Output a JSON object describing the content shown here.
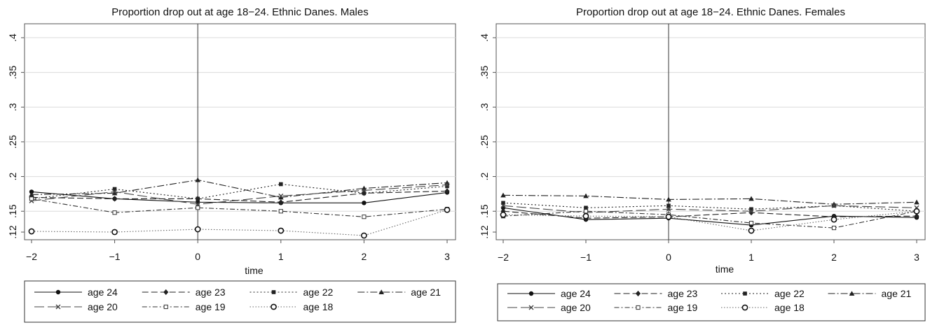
{
  "chart_data": [
    {
      "type": "line",
      "title": "Proportion drop out at age 18−24. Ethnic Danes. Males",
      "xlabel": "time",
      "ylabel": "",
      "x": [
        -2,
        -1,
        0,
        1,
        2,
        3
      ],
      "x_ticks": [
        "−2",
        "−1",
        "0",
        "1",
        "2",
        "3"
      ],
      "xlim": [
        -2,
        3
      ],
      "ylim": [
        0.115,
        0.41
      ],
      "y_ticks": [
        ".12",
        ".15",
        ".2",
        ".25",
        ".3",
        ".35",
        ".4"
      ],
      "grid": "horizontal",
      "vertical_reference_line": 0,
      "legend_position": "bottom",
      "series": [
        {
          "name": "age 24",
          "values": [
            0.178,
            0.168,
            0.163,
            0.162,
            0.162,
            0.177
          ]
        },
        {
          "name": "age 23",
          "values": [
            0.17,
            0.168,
            0.168,
            0.163,
            0.176,
            0.179
          ]
        },
        {
          "name": "age 22",
          "values": [
            0.168,
            0.182,
            0.168,
            0.189,
            0.176,
            0.186
          ]
        },
        {
          "name": "age 21",
          "values": [
            0.174,
            0.176,
            0.195,
            0.17,
            0.183,
            0.191
          ]
        },
        {
          "name": "age 20",
          "values": [
            0.165,
            0.178,
            0.16,
            0.172,
            0.18,
            0.188
          ]
        },
        {
          "name": "age 19",
          "values": [
            0.168,
            0.148,
            0.155,
            0.15,
            0.142,
            0.153
          ]
        },
        {
          "name": "age 18",
          "values": [
            0.121,
            0.12,
            0.124,
            0.122,
            0.115,
            0.152
          ]
        }
      ]
    },
    {
      "type": "line",
      "title": "Proportion drop out at age 18−24. Ethnic Danes. Females",
      "xlabel": "time",
      "ylabel": "",
      "x": [
        -2,
        -1,
        0,
        1,
        2,
        3
      ],
      "x_ticks": [
        "−2",
        "−1",
        "0",
        "1",
        "2",
        "3"
      ],
      "xlim": [
        -2,
        3
      ],
      "ylim": [
        0.115,
        0.41
      ],
      "y_ticks": [
        ".12",
        ".15",
        ".2",
        ".25",
        ".3",
        ".35",
        ".4"
      ],
      "grid": "horizontal",
      "vertical_reference_line": 0,
      "legend_position": "bottom",
      "series": [
        {
          "name": "age 24",
          "values": [
            0.155,
            0.138,
            0.14,
            0.13,
            0.143,
            0.141
          ]
        },
        {
          "name": "age 23",
          "values": [
            0.15,
            0.14,
            0.142,
            0.148,
            0.142,
            0.143
          ]
        },
        {
          "name": "age 22",
          "values": [
            0.162,
            0.155,
            0.158,
            0.153,
            0.158,
            0.15
          ]
        },
        {
          "name": "age 21",
          "values": [
            0.173,
            0.172,
            0.167,
            0.168,
            0.16,
            0.163
          ]
        },
        {
          "name": "age 20",
          "values": [
            0.158,
            0.148,
            0.153,
            0.15,
            0.158,
            0.155
          ]
        },
        {
          "name": "age 19",
          "values": [
            0.143,
            0.15,
            0.145,
            0.133,
            0.126,
            0.15
          ]
        },
        {
          "name": "age 18",
          "values": [
            0.145,
            0.143,
            0.142,
            0.122,
            0.138,
            0.15
          ]
        }
      ]
    }
  ]
}
